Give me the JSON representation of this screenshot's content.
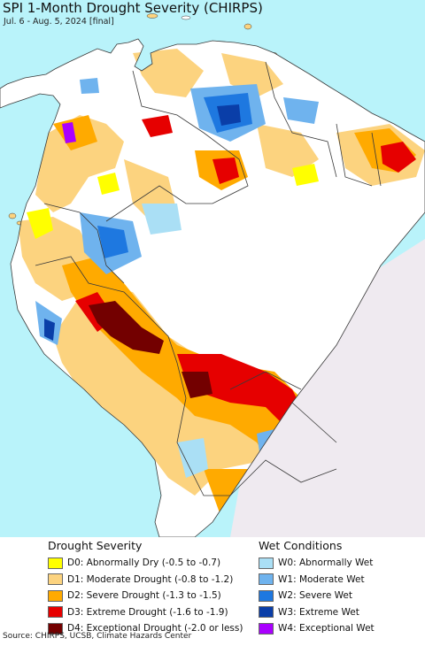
{
  "map": {
    "title": "SPI 1-Month Drought Severity (CHIRPS)",
    "subtitle": "Jul. 6 - Aug. 5, 2024 [final]",
    "colors": {
      "ocean": "#b9f3fa",
      "land": "#ffffff",
      "outside": "#efeaf0",
      "border": "#3a3a3a"
    }
  },
  "legend": {
    "drought": {
      "heading": "Drought Severity",
      "items": [
        {
          "code": "D0",
          "label": "D0: Abnormally Dry (-0.5 to -0.7)",
          "color": "#ffff00"
        },
        {
          "code": "D1",
          "label": "D1: Moderate Drought (-0.8 to -1.2)",
          "color": "#fcd37f"
        },
        {
          "code": "D2",
          "label": "D2: Severe Drought (-1.3 to -1.5)",
          "color": "#ffaa00"
        },
        {
          "code": "D3",
          "label": "D3: Extreme Drought (-1.6 to -1.9)",
          "color": "#e60000"
        },
        {
          "code": "D4",
          "label": "D4: Exceptional Drought (-2.0 or less)",
          "color": "#730000"
        }
      ]
    },
    "wet": {
      "heading": "Wet Conditions",
      "items": [
        {
          "code": "W0",
          "label": "W0: Abnormally Wet",
          "color": "#aadff5"
        },
        {
          "code": "W1",
          "label": "W1: Moderate Wet",
          "color": "#6fb3ee"
        },
        {
          "code": "W2",
          "label": "W2: Severe Wet",
          "color": "#1e78e0"
        },
        {
          "code": "W3",
          "label": "W3: Extreme Wet",
          "color": "#0a3ea8"
        },
        {
          "code": "W4",
          "label": "W4: Exceptional Wet",
          "color": "#aa00ff"
        }
      ]
    }
  },
  "source": "Source: CHIRPS, UCSB, Climate Hazards Center"
}
